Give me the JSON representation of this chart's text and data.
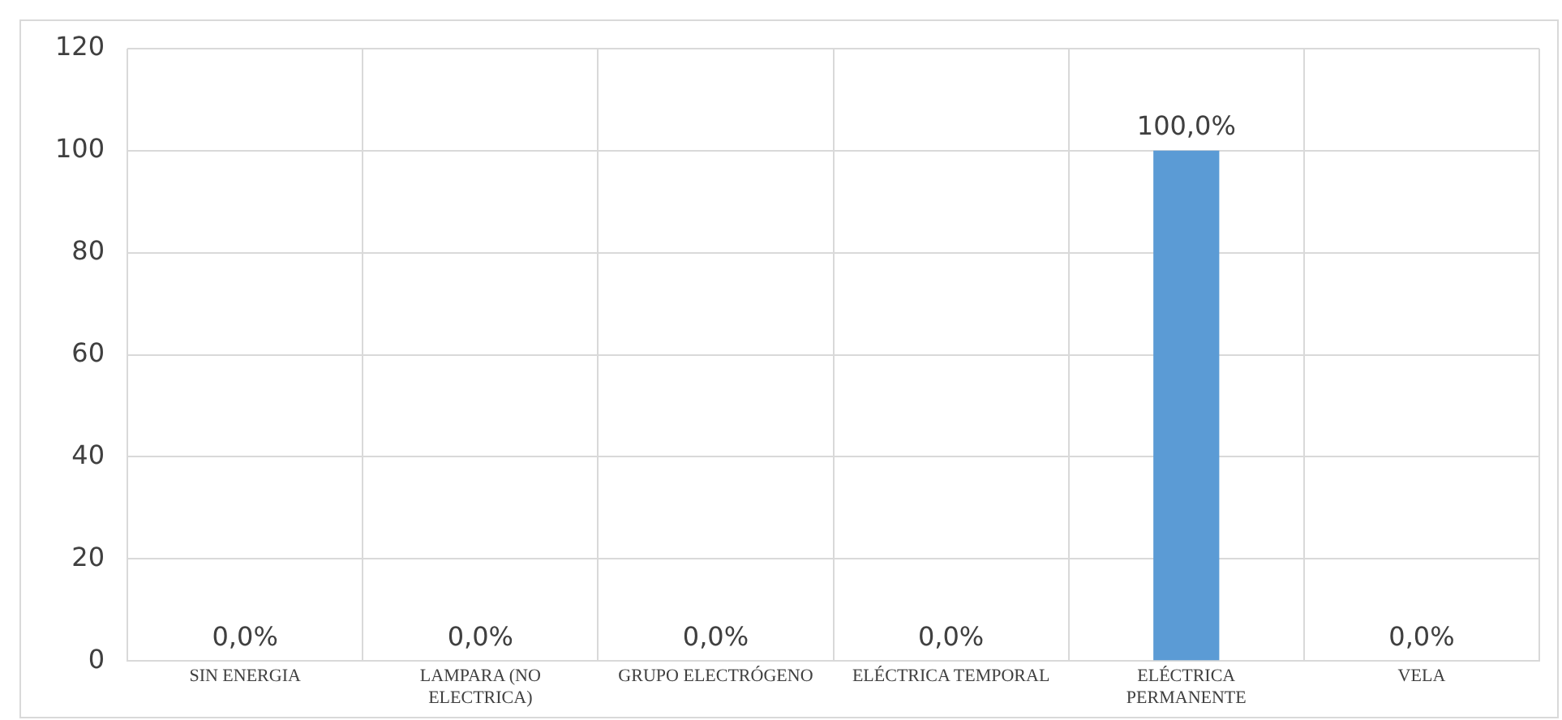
{
  "chart_data": {
    "type": "bar",
    "categories": [
      "SIN ENERGIA",
      "LAMPARA (NO ELECTRICA)",
      "GRUPO ELECTRÓGENO",
      "ELÉCTRICA TEMPORAL",
      "ELÉCTRICA PERMANENTE",
      "VELA"
    ],
    "values": [
      0,
      0,
      0,
      0,
      100,
      0
    ],
    "value_labels": [
      "0,0%",
      "0,0%",
      "0,0%",
      "0,0%",
      "100,0%",
      "0,0%"
    ],
    "color": "#5b9bd5",
    "ylim": [
      0,
      120
    ],
    "yticks": [
      0,
      20,
      40,
      60,
      80,
      100,
      120
    ],
    "grid": true,
    "legend": false
  }
}
